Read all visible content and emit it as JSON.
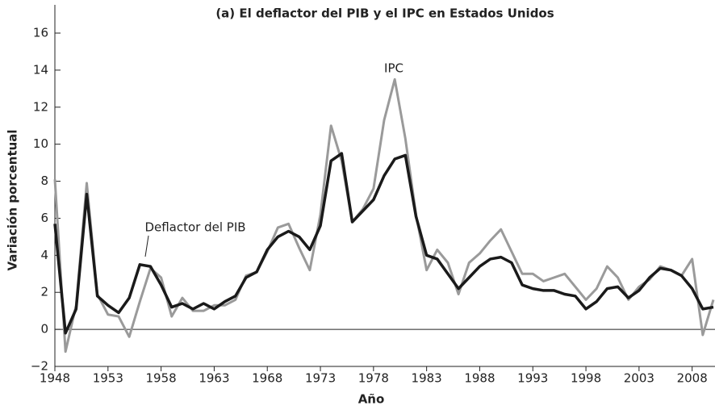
{
  "chart_data": {
    "type": "line",
    "title": "(a) El deflactor del PIB y el IPC en Estados Unidos",
    "xlabel": "Año",
    "ylabel": "Variación porcentual",
    "x": [
      1948,
      1949,
      1950,
      1951,
      1952,
      1953,
      1954,
      1955,
      1956,
      1957,
      1958,
      1959,
      1960,
      1961,
      1962,
      1963,
      1964,
      1965,
      1966,
      1967,
      1968,
      1969,
      1970,
      1971,
      1972,
      1973,
      1974,
      1975,
      1976,
      1977,
      1978,
      1979,
      1980,
      1981,
      1982,
      1983,
      1984,
      1985,
      1986,
      1987,
      1988,
      1989,
      1990,
      1991,
      1992,
      1993,
      1994,
      1995,
      1996,
      1997,
      1998,
      1999,
      2000,
      2001,
      2002,
      2003,
      2004,
      2005,
      2006,
      2007,
      2008,
      2009,
      2010
    ],
    "series": [
      {
        "name": "IPC",
        "color": "#9a9a9a",
        "values": [
          8.1,
          -1.2,
          1.3,
          7.9,
          1.9,
          0.8,
          0.7,
          -0.4,
          1.5,
          3.3,
          2.8,
          0.7,
          1.7,
          1.0,
          1.0,
          1.3,
          1.3,
          1.6,
          2.9,
          3.1,
          4.2,
          5.5,
          5.7,
          4.4,
          3.2,
          6.2,
          11.0,
          9.1,
          5.8,
          6.5,
          7.6,
          11.3,
          13.5,
          10.3,
          6.2,
          3.2,
          4.3,
          3.6,
          1.9,
          3.6,
          4.1,
          4.8,
          5.4,
          4.2,
          3.0,
          3.0,
          2.6,
          2.8,
          3.0,
          2.3,
          1.6,
          2.2,
          3.4,
          2.8,
          1.6,
          2.3,
          2.7,
          3.4,
          3.2,
          2.9,
          3.8,
          -0.3,
          1.6
        ]
      },
      {
        "name": "Deflactor del PIB",
        "color": "#1a1a1a",
        "values": [
          5.7,
          -0.2,
          1.1,
          7.3,
          1.8,
          1.3,
          0.9,
          1.7,
          3.5,
          3.4,
          2.4,
          1.2,
          1.4,
          1.1,
          1.4,
          1.1,
          1.5,
          1.8,
          2.8,
          3.1,
          4.3,
          5.0,
          5.3,
          5.0,
          4.3,
          5.6,
          9.1,
          9.5,
          5.8,
          6.4,
          7.0,
          8.3,
          9.2,
          9.4,
          6.1,
          4.0,
          3.8,
          3.0,
          2.2,
          2.8,
          3.4,
          3.8,
          3.9,
          3.6,
          2.4,
          2.2,
          2.1,
          2.1,
          1.9,
          1.8,
          1.1,
          1.5,
          2.2,
          2.3,
          1.7,
          2.1,
          2.8,
          3.3,
          3.2,
          2.9,
          2.2,
          1.1,
          1.2
        ]
      }
    ],
    "xlim": [
      1948,
      2010
    ],
    "xticks": [
      1948,
      1953,
      1958,
      1963,
      1968,
      1973,
      1978,
      1983,
      1988,
      1993,
      1998,
      2003,
      2008
    ],
    "ylim": [
      -2,
      16
    ],
    "yticks": [
      {
        "value": -2,
        "label": "−2"
      },
      0,
      2,
      4,
      6,
      8,
      10,
      12,
      14,
      16
    ]
  }
}
